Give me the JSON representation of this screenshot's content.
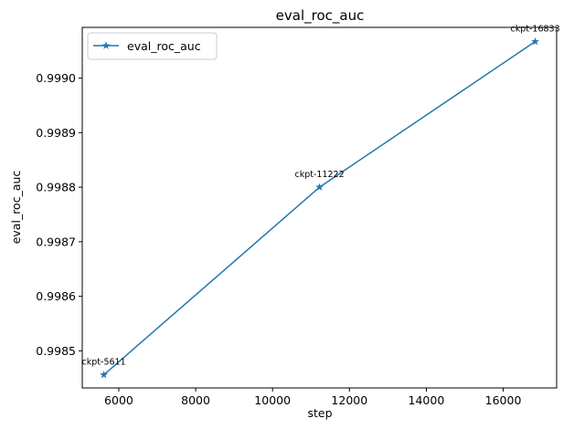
{
  "chart_data": {
    "type": "line",
    "title": "eval_roc_auc",
    "xlabel": "step",
    "ylabel": "eval_roc_auc",
    "xlim": [
      5050,
      17390
    ],
    "ylim": [
      0.998432,
      0.999093
    ],
    "x_ticks": [
      6000,
      8000,
      10000,
      12000,
      14000,
      16000
    ],
    "x_tick_labels": [
      "6000",
      "8000",
      "10000",
      "12000",
      "14000",
      "16000"
    ],
    "y_ticks": [
      0.9985,
      0.9986,
      0.9987,
      0.9988,
      0.9989,
      0.999
    ],
    "y_tick_labels": [
      "0.9985",
      "0.9986",
      "0.9987",
      "0.9988",
      "0.9989",
      "0.9990"
    ],
    "grid": false,
    "legend_position": "top-left",
    "series": [
      {
        "name": "eval_roc_auc",
        "color": "#1f77b4",
        "marker": "star",
        "x": [
          5611,
          11222,
          16833
        ],
        "y": [
          0.998456,
          0.9988,
          0.999067
        ],
        "point_labels": [
          "ckpt-5611",
          "ckpt-11222",
          "ckpt-16833"
        ]
      }
    ]
  }
}
